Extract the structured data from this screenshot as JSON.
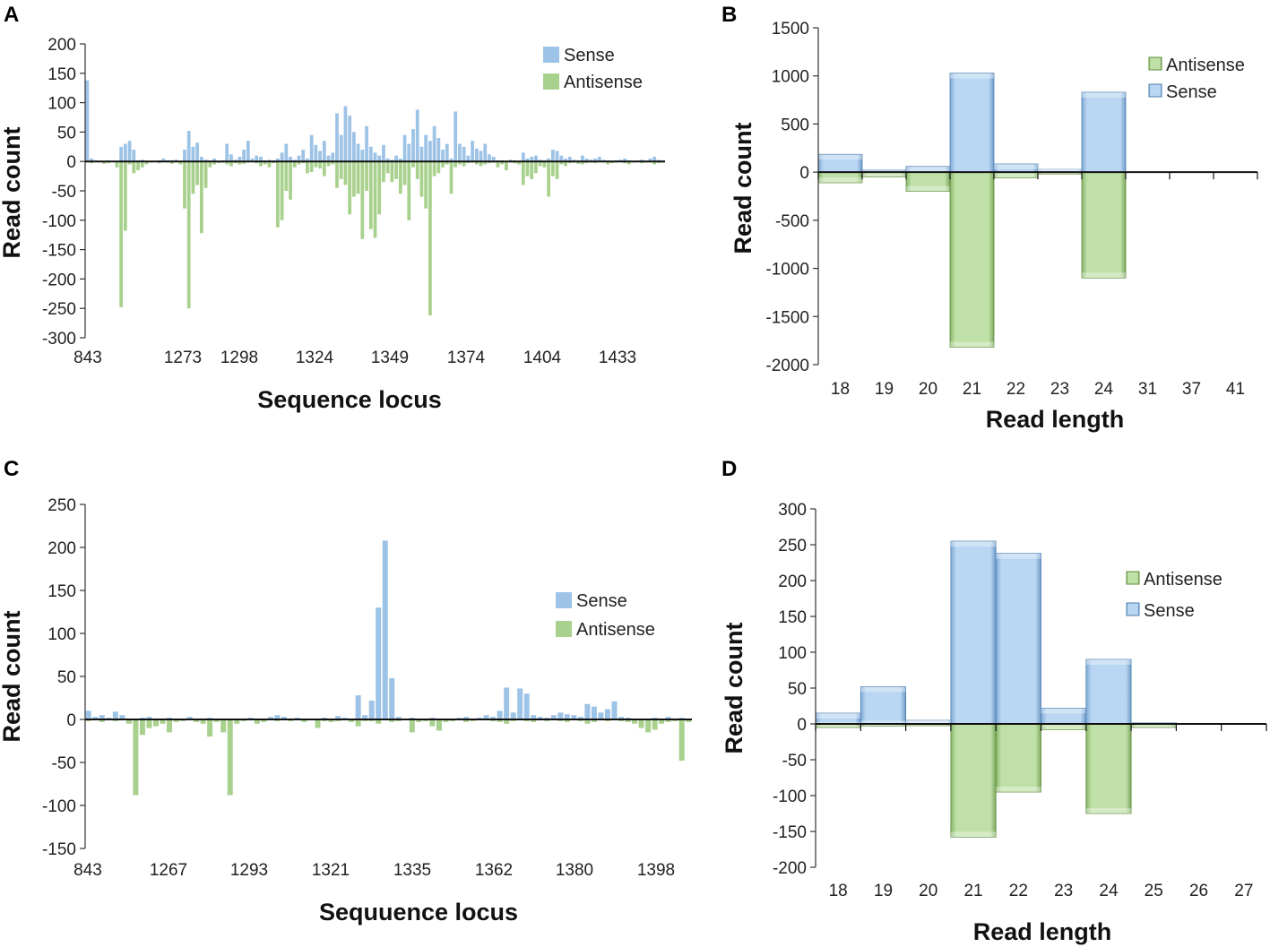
{
  "colors": {
    "sense": "#9DC3E6",
    "antisense": "#A9D18E",
    "sense_dark": "#4F7FAF",
    "antisense_dark": "#5E8B3A"
  },
  "chart_data": [
    {
      "panel": "A",
      "type": "bar",
      "xlabel": "Sequence locus",
      "ylabel": "Read count",
      "ylim": [
        -300,
        200
      ],
      "yticks": [
        200,
        150,
        100,
        50,
        0,
        -50,
        -100,
        -150,
        -200,
        -250,
        -300
      ],
      "xtick_labels": [
        "843",
        "1273",
        "1298",
        "1324",
        "1349",
        "1374",
        "1404",
        "1433"
      ],
      "legend": [
        "Sense",
        "Antisense"
      ],
      "series": [
        {
          "name": "Sense",
          "values": [
            138,
            5,
            2,
            1,
            1,
            2,
            1,
            0,
            25,
            30,
            35,
            20,
            2,
            3,
            1,
            1,
            1,
            2,
            5,
            2,
            2,
            3,
            1,
            20,
            52,
            25,
            32,
            8,
            3,
            2,
            5,
            1,
            2,
            30,
            12,
            3,
            8,
            20,
            35,
            5,
            10,
            8,
            2,
            3,
            2,
            5,
            15,
            30,
            8,
            3,
            10,
            20,
            5,
            45,
            28,
            18,
            35,
            10,
            15,
            82,
            45,
            94,
            78,
            50,
            30,
            20,
            60,
            25,
            15,
            10,
            28,
            5,
            3,
            10,
            5,
            45,
            30,
            55,
            88,
            25,
            45,
            35,
            60,
            40,
            20,
            30,
            5,
            85,
            30,
            25,
            10,
            35,
            22,
            18,
            30,
            12,
            8,
            2,
            2,
            1,
            3,
            2,
            1,
            15,
            5,
            8,
            10,
            3,
            2,
            5,
            20,
            18,
            10,
            5,
            8,
            3,
            2,
            10,
            5,
            3,
            5,
            8,
            3,
            2,
            1,
            2,
            3,
            5,
            2,
            1,
            2,
            3,
            1,
            5,
            8,
            3,
            2
          ]
        },
        {
          "name": "Antisense",
          "values": [
            -2,
            -3,
            -1,
            -2,
            -4,
            -3,
            -1,
            -10,
            -248,
            -118,
            -5,
            -20,
            -15,
            -10,
            -5,
            -2,
            -1,
            -3,
            -1,
            -2,
            -4,
            -2,
            -5,
            -80,
            -250,
            -55,
            -40,
            -122,
            -45,
            -10,
            -5,
            -3,
            -2,
            -5,
            -8,
            -3,
            -5,
            -4,
            -2,
            -1,
            -3,
            -8,
            -5,
            -10,
            -3,
            -112,
            -100,
            -50,
            -65,
            -10,
            -5,
            -3,
            -20,
            -18,
            -10,
            -12,
            -25,
            -8,
            -5,
            -45,
            -30,
            -40,
            -90,
            -60,
            -55,
            -132,
            -50,
            -115,
            -130,
            -90,
            -35,
            -20,
            -35,
            -30,
            -55,
            -40,
            -100,
            -10,
            -30,
            -60,
            -80,
            -262,
            -25,
            -20,
            -10,
            -5,
            -55,
            -10,
            -5,
            -8,
            -3,
            -2,
            -5,
            -8,
            -5,
            -3,
            -2,
            -10,
            -5,
            -15,
            -2,
            -3,
            -5,
            -40,
            -25,
            -30,
            -20,
            -8,
            -10,
            -60,
            -25,
            -30,
            -5,
            -8,
            -3,
            -2,
            -4,
            -5,
            -3,
            -2,
            -3,
            -1,
            -2,
            -5,
            -3,
            -2,
            -1,
            -3,
            -5,
            -2,
            -1,
            -3,
            -2,
            -2,
            -5,
            -3,
            -2
          ]
        }
      ]
    },
    {
      "panel": "B",
      "type": "bar",
      "style": "3d",
      "xlabel": "Read length",
      "ylabel": "Read count",
      "ylim": [
        -2000,
        1500
      ],
      "yticks": [
        1500,
        1000,
        500,
        0,
        -500,
        -1000,
        -1500,
        -2000
      ],
      "categories": [
        "18",
        "19",
        "20",
        "21",
        "22",
        "23",
        "24",
        "31",
        "37",
        "41"
      ],
      "legend": [
        "Antisense",
        "Sense"
      ],
      "series": [
        {
          "name": "Sense",
          "values": [
            185,
            20,
            60,
            1030,
            85,
            30,
            830,
            0,
            0,
            0
          ]
        },
        {
          "name": "Antisense",
          "values": [
            -110,
            -50,
            -200,
            -1820,
            -60,
            -20,
            -1100,
            0,
            0,
            0
          ]
        }
      ]
    },
    {
      "panel": "C",
      "type": "bar",
      "xlabel": "Sequuence locus",
      "ylabel": "Read count",
      "ylim": [
        -150,
        250
      ],
      "yticks": [
        250,
        200,
        150,
        100,
        50,
        0,
        -50,
        -100,
        -150
      ],
      "xtick_labels": [
        "843",
        "1267",
        "1293",
        "1321",
        "1335",
        "1362",
        "1380",
        "1398"
      ],
      "legend": [
        "Sense",
        "Antisense"
      ],
      "series": [
        {
          "name": "Sense",
          "values": [
            10,
            3,
            5,
            2,
            9,
            5,
            1,
            0,
            2,
            3,
            1,
            0,
            2,
            1,
            0,
            3,
            1,
            0,
            2,
            1,
            0,
            1,
            0,
            1,
            2,
            0,
            1,
            3,
            5,
            3,
            1,
            2,
            0,
            1,
            0,
            2,
            1,
            4,
            2,
            1,
            28,
            5,
            22,
            130,
            208,
            48,
            3,
            1,
            2,
            1,
            0,
            2,
            1,
            0,
            1,
            2,
            3,
            1,
            2,
            5,
            3,
            10,
            37,
            8,
            36,
            30,
            5,
            3,
            2,
            5,
            8,
            6,
            5,
            3,
            18,
            15,
            8,
            12,
            21,
            3,
            2,
            1,
            1,
            0,
            2,
            1,
            3,
            1,
            2,
            0
          ]
        },
        {
          "name": "Antisense",
          "values": [
            -2,
            -1,
            -3,
            -1,
            -2,
            -1,
            -5,
            -88,
            -18,
            -10,
            -8,
            -5,
            -15,
            -3,
            -2,
            -1,
            -3,
            -5,
            -20,
            -3,
            -15,
            -88,
            -5,
            -2,
            -1,
            -5,
            -3,
            -1,
            -2,
            -1,
            -2,
            -1,
            -3,
            -1,
            -10,
            -2,
            -3,
            -2,
            -1,
            -3,
            -8,
            -2,
            -2,
            -5,
            -1,
            -3,
            -2,
            -1,
            -15,
            -3,
            -2,
            -8,
            -13,
            -3,
            -2,
            -1,
            -3,
            -2,
            -1,
            -1,
            -2,
            -3,
            -5,
            -2,
            -1,
            -2,
            -3,
            -1,
            -2,
            -1,
            -2,
            -3,
            -1,
            -2,
            -5,
            -3,
            -1,
            -2,
            -1,
            -2,
            -3,
            -5,
            -10,
            -15,
            -12,
            -5,
            -3,
            -2,
            -48,
            -3
          ]
        }
      ]
    },
    {
      "panel": "D",
      "type": "bar",
      "style": "3d",
      "xlabel": "Read length",
      "ylabel": "Read count",
      "ylim": [
        -200,
        300
      ],
      "yticks": [
        300,
        250,
        200,
        150,
        100,
        50,
        0,
        -50,
        -100,
        -150,
        -200
      ],
      "categories": [
        "18",
        "19",
        "20",
        "21",
        "22",
        "23",
        "24",
        "25",
        "26",
        "27"
      ],
      "legend": [
        "Antisense",
        "Sense"
      ],
      "series": [
        {
          "name": "Sense",
          "values": [
            15,
            52,
            5,
            255,
            238,
            22,
            90,
            2,
            0,
            0
          ]
        },
        {
          "name": "Antisense",
          "values": [
            -5,
            -3,
            -2,
            -158,
            -95,
            -8,
            -125,
            -5,
            0,
            0
          ]
        }
      ]
    }
  ]
}
